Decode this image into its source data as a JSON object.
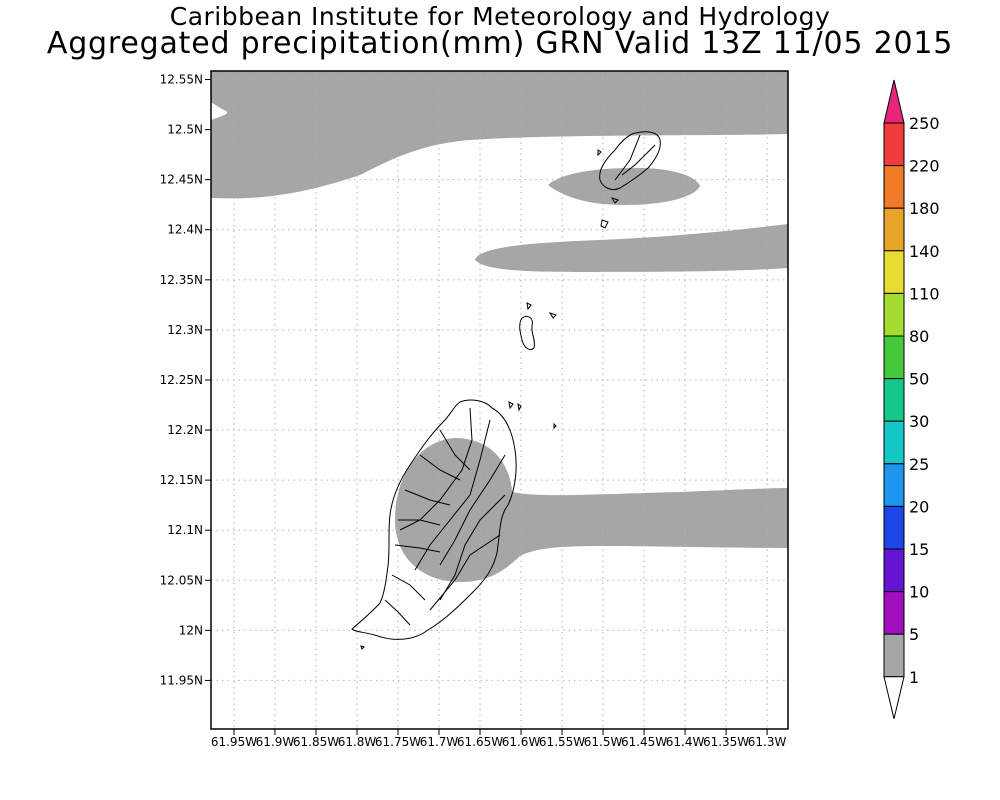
{
  "title_line1": "Caribbean Institute for Meteorology and Hydrology",
  "title_line2": "Aggregated precipitation(mm) GRN Valid 13Z 11/05 2015",
  "map": {
    "lat_ticks": [
      "12.55N",
      "12.5N",
      "12.45N",
      "12.4N",
      "12.35N",
      "12.3N",
      "12.25N",
      "12.2N",
      "12.15N",
      "12.1N",
      "12.05N",
      "12N",
      "11.95N"
    ],
    "lon_ticks": [
      "61.95W",
      "61.9W",
      "61.85W",
      "61.8W",
      "61.75W",
      "61.7W",
      "61.65W",
      "61.6W",
      "61.55W",
      "61.5W",
      "61.45W",
      "61.4W",
      "61.35W",
      "61.3W"
    ],
    "lat_values": [
      12.55,
      12.5,
      12.45,
      12.4,
      12.35,
      12.3,
      12.25,
      12.2,
      12.15,
      12.1,
      12.05,
      12.0,
      11.95
    ],
    "lon_values": [
      -61.95,
      -61.9,
      -61.85,
      -61.8,
      -61.75,
      -61.7,
      -61.65,
      -61.6,
      -61.55,
      -61.5,
      -61.45,
      -61.4,
      -61.35,
      -61.3
    ],
    "precip_fill_color": "#a6a6a6",
    "grid": "dotted"
  },
  "colorbar": {
    "labels": [
      "250",
      "220",
      "180",
      "140",
      "110",
      "80",
      "50",
      "30",
      "25",
      "20",
      "15",
      "10",
      "5",
      "1"
    ],
    "colors": [
      "#e8257a",
      "#f03c3c",
      "#f07a28",
      "#e8a428",
      "#e6dc32",
      "#a4dc32",
      "#46c83c",
      "#14c88c",
      "#14c8c8",
      "#1e96f0",
      "#1e46e6",
      "#6414d2",
      "#a00fbe",
      "#a6a6a6",
      "#ffffff"
    ]
  }
}
